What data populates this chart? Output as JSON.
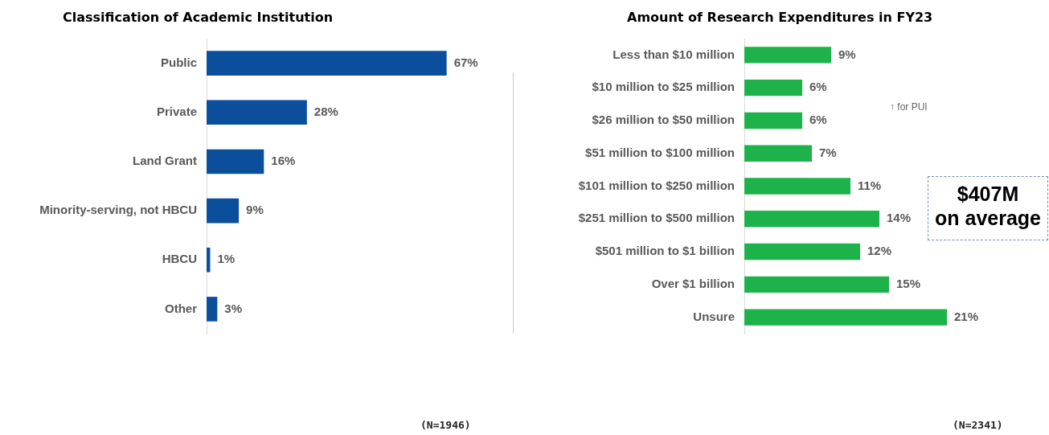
{
  "chart_data": [
    {
      "type": "bar",
      "orientation": "horizontal",
      "title": "Classification of Academic Institution",
      "categories": [
        "Public",
        "Private",
        "Land Grant",
        "Minority-serving, not HBCU",
        "HBCU",
        "Other"
      ],
      "values": [
        67,
        28,
        16,
        9,
        1,
        3
      ],
      "value_labels": [
        "67%",
        "28%",
        "16%",
        "9%",
        "1%",
        "3%"
      ],
      "color": "#0b4f9c",
      "tick_labels": "y",
      "grid": false,
      "legend": false,
      "annotations": [
        "(N=1946)"
      ]
    },
    {
      "type": "bar",
      "orientation": "horizontal",
      "title": "Amount of Research Expenditures in FY23",
      "categories": [
        "Less than $10 million",
        "$10 million to $25 million",
        "$26 million to $50 million",
        "$51 million to $100 million",
        "$101 million to $250 million",
        "$251 million to $500 million",
        "$501 million to $1 billion",
        "Over $1 billion",
        "Unsure"
      ],
      "values": [
        9,
        6,
        6,
        7,
        11,
        14,
        12,
        15,
        21
      ],
      "value_labels": [
        "9%",
        "6%",
        "6%",
        "7%",
        "11%",
        "14%",
        "12%",
        "15%",
        "21%"
      ],
      "color": "#1db24a",
      "tick_labels": "y",
      "grid": false,
      "legend": false,
      "annotations": [
        "↑ for PUI",
        "$407M\non average",
        "(N=2341)"
      ]
    }
  ]
}
